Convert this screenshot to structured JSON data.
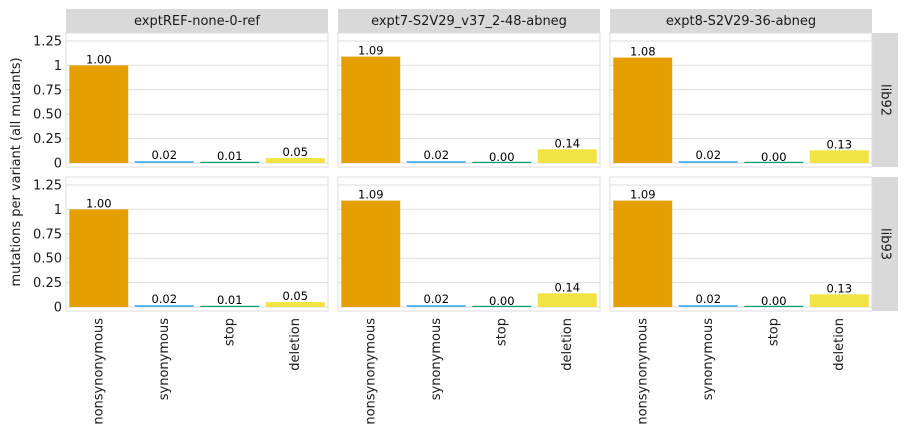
{
  "chart_data": {
    "type": "bar",
    "facet_columns": [
      "exptREF-none-0-ref",
      "expt7-S2V29_v37_2-48-abneg",
      "expt8-S2V29-36-abneg"
    ],
    "facet_rows": [
      "lib92",
      "lib93"
    ],
    "categories": [
      "nonsynonymous",
      "synonymous",
      "stop",
      "deletion"
    ],
    "ylabel": "mutations per variant (all mutants)",
    "xlabel": "",
    "ylim": [
      0,
      1.25
    ],
    "yticks": [
      0,
      0.25,
      0.5,
      0.75,
      1,
      1.25
    ],
    "ytick_labels": [
      "0",
      "0.25",
      "0.50",
      "0.75",
      "1",
      "1.25"
    ],
    "grid": true,
    "category_colors": {
      "nonsynonymous": "#E69F00",
      "synonymous": "#56B4E9",
      "stop": "#009E73",
      "deletion": "#F0E442"
    },
    "panels": [
      {
        "row": "lib92",
        "column": "exptREF-none-0-ref",
        "values": [
          1.0,
          0.02,
          0.01,
          0.05
        ],
        "labels": [
          "1.00",
          "0.02",
          "0.01",
          "0.05"
        ]
      },
      {
        "row": "lib92",
        "column": "expt7-S2V29_v37_2-48-abneg",
        "values": [
          1.09,
          0.02,
          0.0,
          0.14
        ],
        "labels": [
          "1.09",
          "0.02",
          "0.00",
          "0.14"
        ]
      },
      {
        "row": "lib92",
        "column": "expt8-S2V29-36-abneg",
        "values": [
          1.08,
          0.02,
          0.0,
          0.13
        ],
        "labels": [
          "1.08",
          "0.02",
          "0.00",
          "0.13"
        ]
      },
      {
        "row": "lib93",
        "column": "exptREF-none-0-ref",
        "values": [
          1.0,
          0.02,
          0.01,
          0.05
        ],
        "labels": [
          "1.00",
          "0.02",
          "0.01",
          "0.05"
        ]
      },
      {
        "row": "lib93",
        "column": "expt7-S2V29_v37_2-48-abneg",
        "values": [
          1.09,
          0.02,
          0.0,
          0.14
        ],
        "labels": [
          "1.09",
          "0.02",
          "0.00",
          "0.14"
        ]
      },
      {
        "row": "lib93",
        "column": "expt8-S2V29-36-abneg",
        "values": [
          1.09,
          0.02,
          0.0,
          0.13
        ],
        "labels": [
          "1.09",
          "0.02",
          "0.00",
          "0.13"
        ]
      }
    ]
  }
}
